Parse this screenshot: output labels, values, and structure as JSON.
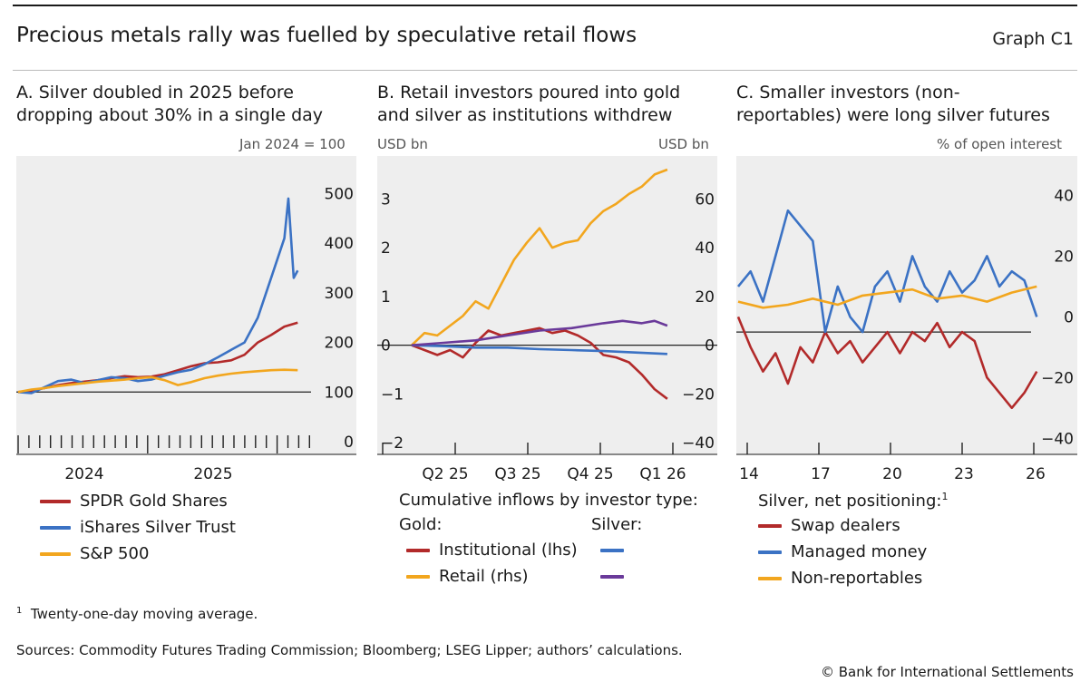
{
  "header": {
    "title": "Precious metals rally was fuelled by speculative retail flows",
    "graph_id": "Graph C1"
  },
  "panels": {
    "a": {
      "title_line1": "A. Silver doubled in 2025 before",
      "title_line2": "dropping about 30% in a single day",
      "unit": "Jan 2024 = 100"
    },
    "b": {
      "title_line1": "B. Retail investors poured into gold",
      "title_line2": "and silver as institutions withdrew",
      "unit_left": "USD bn",
      "unit_right": "USD bn"
    },
    "c": {
      "title_line1": "C. Smaller investors (non-",
      "title_line2": "reportables) were long silver futures",
      "unit": "% of open interest"
    }
  },
  "legends": {
    "a": [
      "SPDR Gold Shares",
      "iShares Silver Trust",
      "S&P 500"
    ],
    "b": {
      "heading": "Cumulative inflows by investor type:",
      "gold": "Gold:",
      "silver": "Silver:",
      "institutional": "Institutional (lhs)",
      "retail": "Retail (rhs)"
    },
    "c": {
      "heading": "Silver, net positioning:",
      "heading_note": "1",
      "items": [
        "Swap dealers",
        "Managed money",
        "Non-reportables"
      ]
    }
  },
  "footer": {
    "footnote_mark": "1",
    "footnote": "Twenty-one-day moving average.",
    "sources": "Sources: Commodity Futures Trading Commission; Bloomberg; LSEG Lipper; authors’ calculations.",
    "copyright": "© Bank for International Settlements"
  },
  "colors": {
    "red": "#b22a2a",
    "blue": "#3b72c4",
    "yellow": "#f2a61e",
    "purple": "#6a3a9a",
    "panel_bg": "#eeeeee"
  },
  "chart_data": [
    {
      "type": "line",
      "id": "A",
      "ylabel": "Jan 2024 = 100",
      "ylim": [
        0,
        530
      ],
      "yticks": [
        0,
        100,
        200,
        300,
        400,
        500
      ],
      "xlim": [
        2024.0,
        2026.2
      ],
      "xticks": [
        "2024",
        "2025"
      ],
      "reference_line": 100,
      "series": [
        {
          "name": "SPDR Gold Shares",
          "color": "#b22a2a",
          "x": [
            2024.0,
            2024.1,
            2024.2,
            2024.3,
            2024.4,
            2024.5,
            2024.6,
            2024.7,
            2024.8,
            2024.9,
            2025.0,
            2025.1,
            2025.2,
            2025.3,
            2025.4,
            2025.5,
            2025.6,
            2025.7,
            2025.8,
            2025.9,
            2026.0,
            2026.1
          ],
          "y": [
            100,
            103,
            108,
            114,
            118,
            121,
            124,
            128,
            132,
            130,
            131,
            136,
            144,
            152,
            158,
            160,
            164,
            175,
            200,
            215,
            232,
            240
          ]
        },
        {
          "name": "iShares Silver Trust",
          "color": "#3b72c4",
          "x": [
            2024.0,
            2024.1,
            2024.2,
            2024.3,
            2024.4,
            2024.5,
            2024.6,
            2024.7,
            2024.8,
            2024.9,
            2025.0,
            2025.1,
            2025.2,
            2025.3,
            2025.4,
            2025.5,
            2025.6,
            2025.7,
            2025.8,
            2025.9,
            2026.0,
            2026.03,
            2026.07,
            2026.1
          ],
          "y": [
            100,
            98,
            110,
            122,
            125,
            118,
            124,
            130,
            128,
            122,
            125,
            133,
            140,
            145,
            156,
            170,
            185,
            200,
            250,
            330,
            410,
            490,
            330,
            345
          ]
        },
        {
          "name": "S&P 500",
          "color": "#f2a61e",
          "x": [
            2024.0,
            2024.1,
            2024.2,
            2024.3,
            2024.4,
            2024.5,
            2024.6,
            2024.7,
            2024.8,
            2024.9,
            2025.0,
            2025.1,
            2025.2,
            2025.3,
            2025.4,
            2025.5,
            2025.6,
            2025.7,
            2025.8,
            2025.9,
            2026.0,
            2026.1
          ],
          "y": [
            100,
            105,
            108,
            112,
            115,
            118,
            121,
            123,
            125,
            128,
            130,
            124,
            114,
            120,
            128,
            133,
            137,
            140,
            142,
            144,
            145,
            144
          ]
        }
      ]
    },
    {
      "type": "line",
      "id": "B",
      "ylabel_left": "USD bn",
      "ylabel_right": "USD bn",
      "ylim_left": [
        -2.2,
        3.6
      ],
      "yticks_left": [
        -2,
        -1,
        0,
        1,
        2,
        3
      ],
      "ylim_right": [
        -44,
        72
      ],
      "yticks_right": [
        -40,
        -20,
        0,
        20,
        40,
        60
      ],
      "xlim": [
        0,
        4.2
      ],
      "xticks": [
        "Q2 25",
        "Q3 25",
        "Q4 25",
        "Q1 26"
      ],
      "reference_line": 0,
      "series": [
        {
          "name": "Gold Institutional (lhs)",
          "color": "#b22a2a",
          "axis": "left",
          "x": [
            0.0,
            0.2,
            0.4,
            0.6,
            0.8,
            1.0,
            1.2,
            1.4,
            1.6,
            1.8,
            2.0,
            2.2,
            2.4,
            2.6,
            2.8,
            3.0,
            3.2,
            3.4,
            3.6,
            3.8,
            4.0
          ],
          "y": [
            0.0,
            -0.1,
            -0.2,
            -0.1,
            -0.25,
            0.05,
            0.3,
            0.2,
            0.25,
            0.3,
            0.35,
            0.25,
            0.3,
            0.2,
            0.05,
            -0.2,
            -0.25,
            -0.35,
            -0.6,
            -0.9,
            -1.1
          ]
        },
        {
          "name": "Gold Retail (rhs)",
          "color": "#f2a61e",
          "axis": "right",
          "x": [
            0.0,
            0.2,
            0.4,
            0.6,
            0.8,
            1.0,
            1.2,
            1.4,
            1.6,
            1.8,
            2.0,
            2.2,
            2.4,
            2.6,
            2.8,
            3.0,
            3.2,
            3.4,
            3.6,
            3.8,
            4.0
          ],
          "y": [
            0,
            5,
            4,
            8,
            12,
            18,
            15,
            25,
            35,
            42,
            48,
            40,
            42,
            43,
            50,
            55,
            58,
            62,
            65,
            70,
            72
          ]
        },
        {
          "name": "Silver Institutional (lhs)",
          "color": "#3b72c4",
          "axis": "left",
          "x": [
            0.0,
            0.5,
            1.0,
            1.5,
            2.0,
            2.5,
            3.0,
            3.5,
            4.0
          ],
          "y": [
            0.0,
            -0.02,
            -0.05,
            -0.05,
            -0.08,
            -0.1,
            -0.12,
            -0.15,
            -0.18
          ]
        },
        {
          "name": "Silver Retail (rhs)",
          "color": "#6a3a9a",
          "axis": "right",
          "x": [
            0.0,
            0.5,
            1.0,
            1.5,
            2.0,
            2.5,
            3.0,
            3.3,
            3.6,
            3.8,
            4.0
          ],
          "y": [
            0,
            1,
            2,
            4,
            6,
            7,
            9,
            10,
            9,
            10,
            8
          ]
        }
      ]
    },
    {
      "type": "line",
      "id": "C",
      "ylabel": "% of open interest",
      "ylim": [
        -45,
        50
      ],
      "yticks": [
        -40,
        -20,
        0,
        20,
        40
      ],
      "xlim": [
        2014,
        2026.5
      ],
      "xticks": [
        "14",
        "17",
        "20",
        "23",
        "26"
      ],
      "reference_line": -5,
      "series": [
        {
          "name": "Swap dealers",
          "color": "#b22a2a",
          "x": [
            2014.0,
            2014.5,
            2015.0,
            2015.5,
            2016.0,
            2016.5,
            2017.0,
            2017.5,
            2018.0,
            2018.5,
            2019.0,
            2019.5,
            2020.0,
            2020.5,
            2021.0,
            2021.5,
            2022.0,
            2022.5,
            2023.0,
            2023.5,
            2024.0,
            2024.5,
            2025.0,
            2025.5,
            2026.0
          ],
          "y": [
            0,
            -10,
            -18,
            -12,
            -22,
            -10,
            -15,
            -5,
            -12,
            -8,
            -15,
            -10,
            -5,
            -12,
            -5,
            -8,
            -2,
            -10,
            -5,
            -8,
            -20,
            -25,
            -30,
            -25,
            -18
          ]
        },
        {
          "name": "Managed money",
          "color": "#3b72c4",
          "x": [
            2014.0,
            2014.5,
            2015.0,
            2015.5,
            2016.0,
            2016.5,
            2017.0,
            2017.5,
            2018.0,
            2018.5,
            2019.0,
            2019.5,
            2020.0,
            2020.5,
            2021.0,
            2021.5,
            2022.0,
            2022.5,
            2023.0,
            2023.5,
            2024.0,
            2024.5,
            2025.0,
            2025.5,
            2026.0
          ],
          "y": [
            10,
            15,
            5,
            20,
            35,
            30,
            25,
            -5,
            10,
            0,
            -5,
            10,
            15,
            5,
            20,
            10,
            5,
            15,
            8,
            12,
            20,
            10,
            15,
            12,
            0
          ]
        },
        {
          "name": "Non-reportables",
          "color": "#f2a61e",
          "x": [
            2014.0,
            2015.0,
            2016.0,
            2017.0,
            2018.0,
            2019.0,
            2020.0,
            2021.0,
            2022.0,
            2023.0,
            2024.0,
            2025.0,
            2026.0
          ],
          "y": [
            5,
            3,
            4,
            6,
            4,
            7,
            8,
            9,
            6,
            7,
            5,
            8,
            10
          ]
        }
      ]
    }
  ]
}
